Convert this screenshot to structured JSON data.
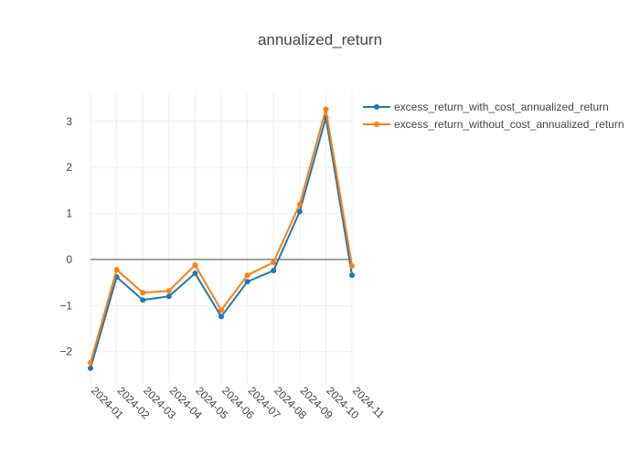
{
  "chart_data": {
    "type": "line",
    "title": "annualized_return",
    "xlabel": "",
    "ylabel": "",
    "categories": [
      "2024-01",
      "2024-02",
      "2024-03",
      "2024-04",
      "2024-05",
      "2024-06",
      "2024-07",
      "2024-08",
      "2024-09",
      "2024-10",
      "2024-11"
    ],
    "ylim": [
      -2.7,
      3.65
    ],
    "yticks": [
      -2,
      -1,
      0,
      1,
      2,
      3
    ],
    "ytick_labels": [
      "−2",
      "−1",
      "0",
      "1",
      "2",
      "3"
    ],
    "grid": true,
    "legend_position": "top-right",
    "series": [
      {
        "name": "excess_return_with_cost_annualized_return",
        "color": "#1f77b4",
        "values": [
          -2.36,
          -0.38,
          -0.88,
          -0.8,
          -0.3,
          -1.24,
          -0.48,
          -0.24,
          1.04,
          3.08,
          -0.34
        ]
      },
      {
        "name": "excess_return_without_cost_annualized_return",
        "color": "#ff7f0e",
        "values": [
          -2.24,
          -0.22,
          -0.72,
          -0.68,
          -0.12,
          -1.1,
          -0.34,
          -0.06,
          1.2,
          3.26,
          -0.14
        ]
      }
    ]
  }
}
